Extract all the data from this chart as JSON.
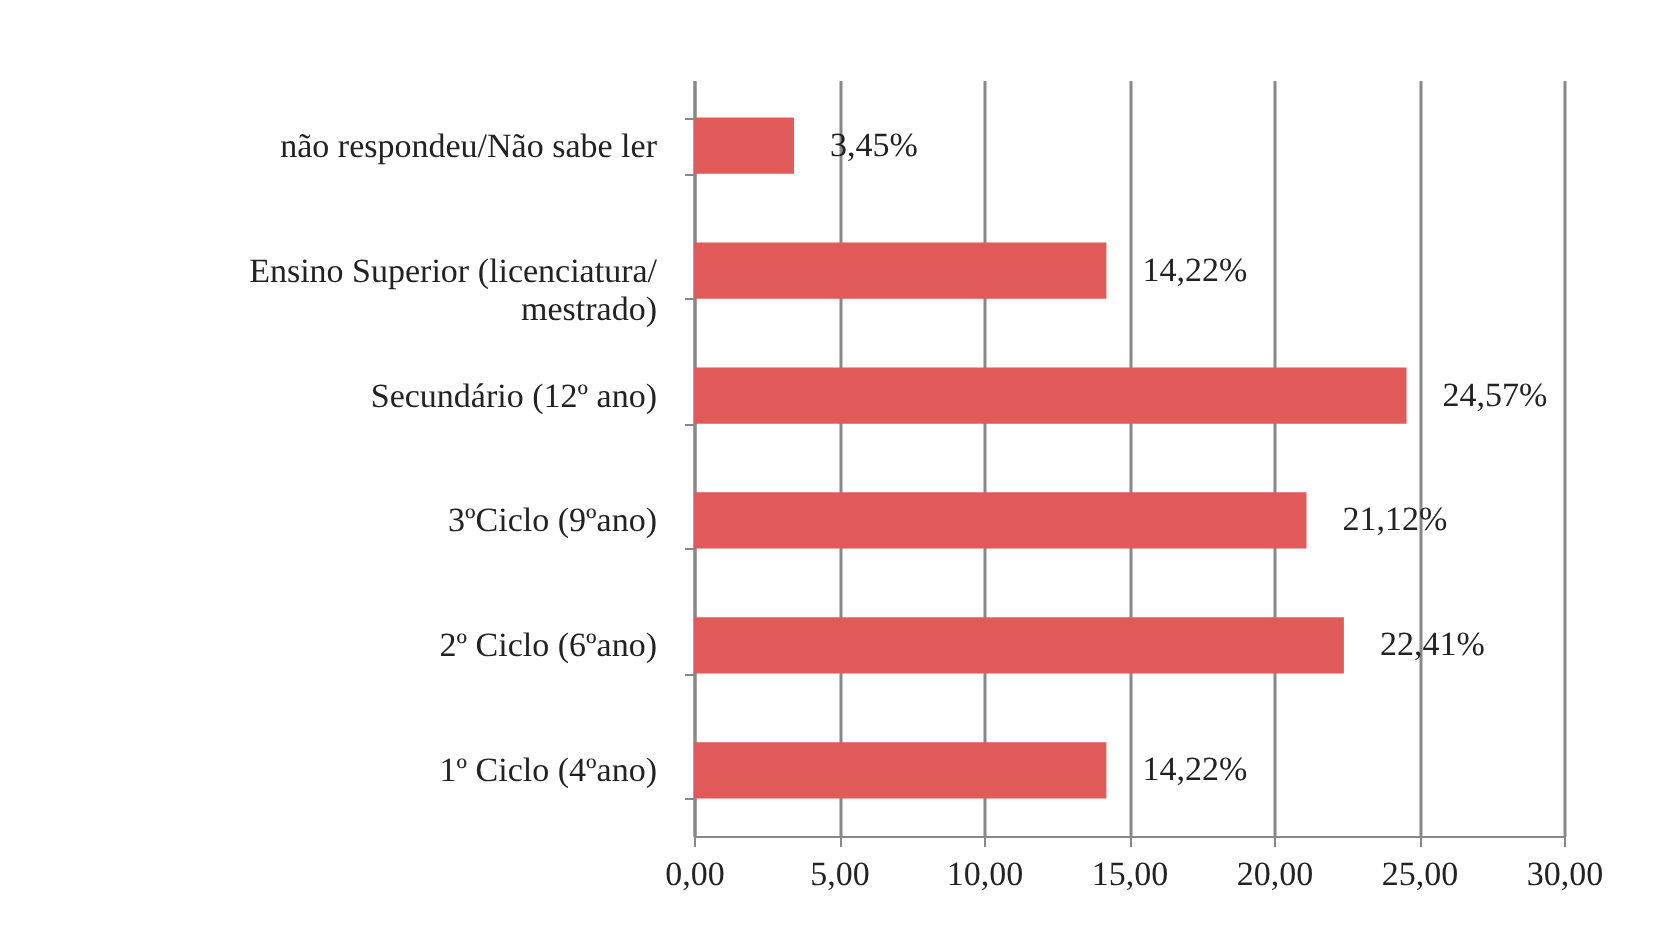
{
  "chart_data": {
    "type": "bar",
    "orientation": "horizontal",
    "categories": [
      "não respondeu/Não sabe ler",
      "Ensino Superior (licenciatura/ mestrado)",
      "Secundário (12º ano)",
      "3ºCiclo (9ºano)",
      "2º Ciclo (6ºano)",
      "1º Ciclo (4ºano)"
    ],
    "values": [
      3.45,
      14.22,
      24.57,
      21.12,
      22.41,
      14.22
    ],
    "value_labels": [
      "3,45%",
      "14,22%",
      "24,57%",
      "21,12%",
      "22,41%",
      "14,22%"
    ],
    "color": "#e05a5a",
    "xlim": [
      0,
      30
    ],
    "xticks": [
      {
        "value": 0,
        "label": "0,00"
      },
      {
        "value": 5,
        "label": "5,00"
      },
      {
        "value": 10,
        "label": "10,00"
      },
      {
        "value": 15,
        "label": "15,00"
      },
      {
        "value": 20,
        "label": "20,00"
      },
      {
        "value": 25,
        "label": "25,00"
      },
      {
        "value": 30,
        "label": "30,00"
      }
    ],
    "grid": "x"
  }
}
